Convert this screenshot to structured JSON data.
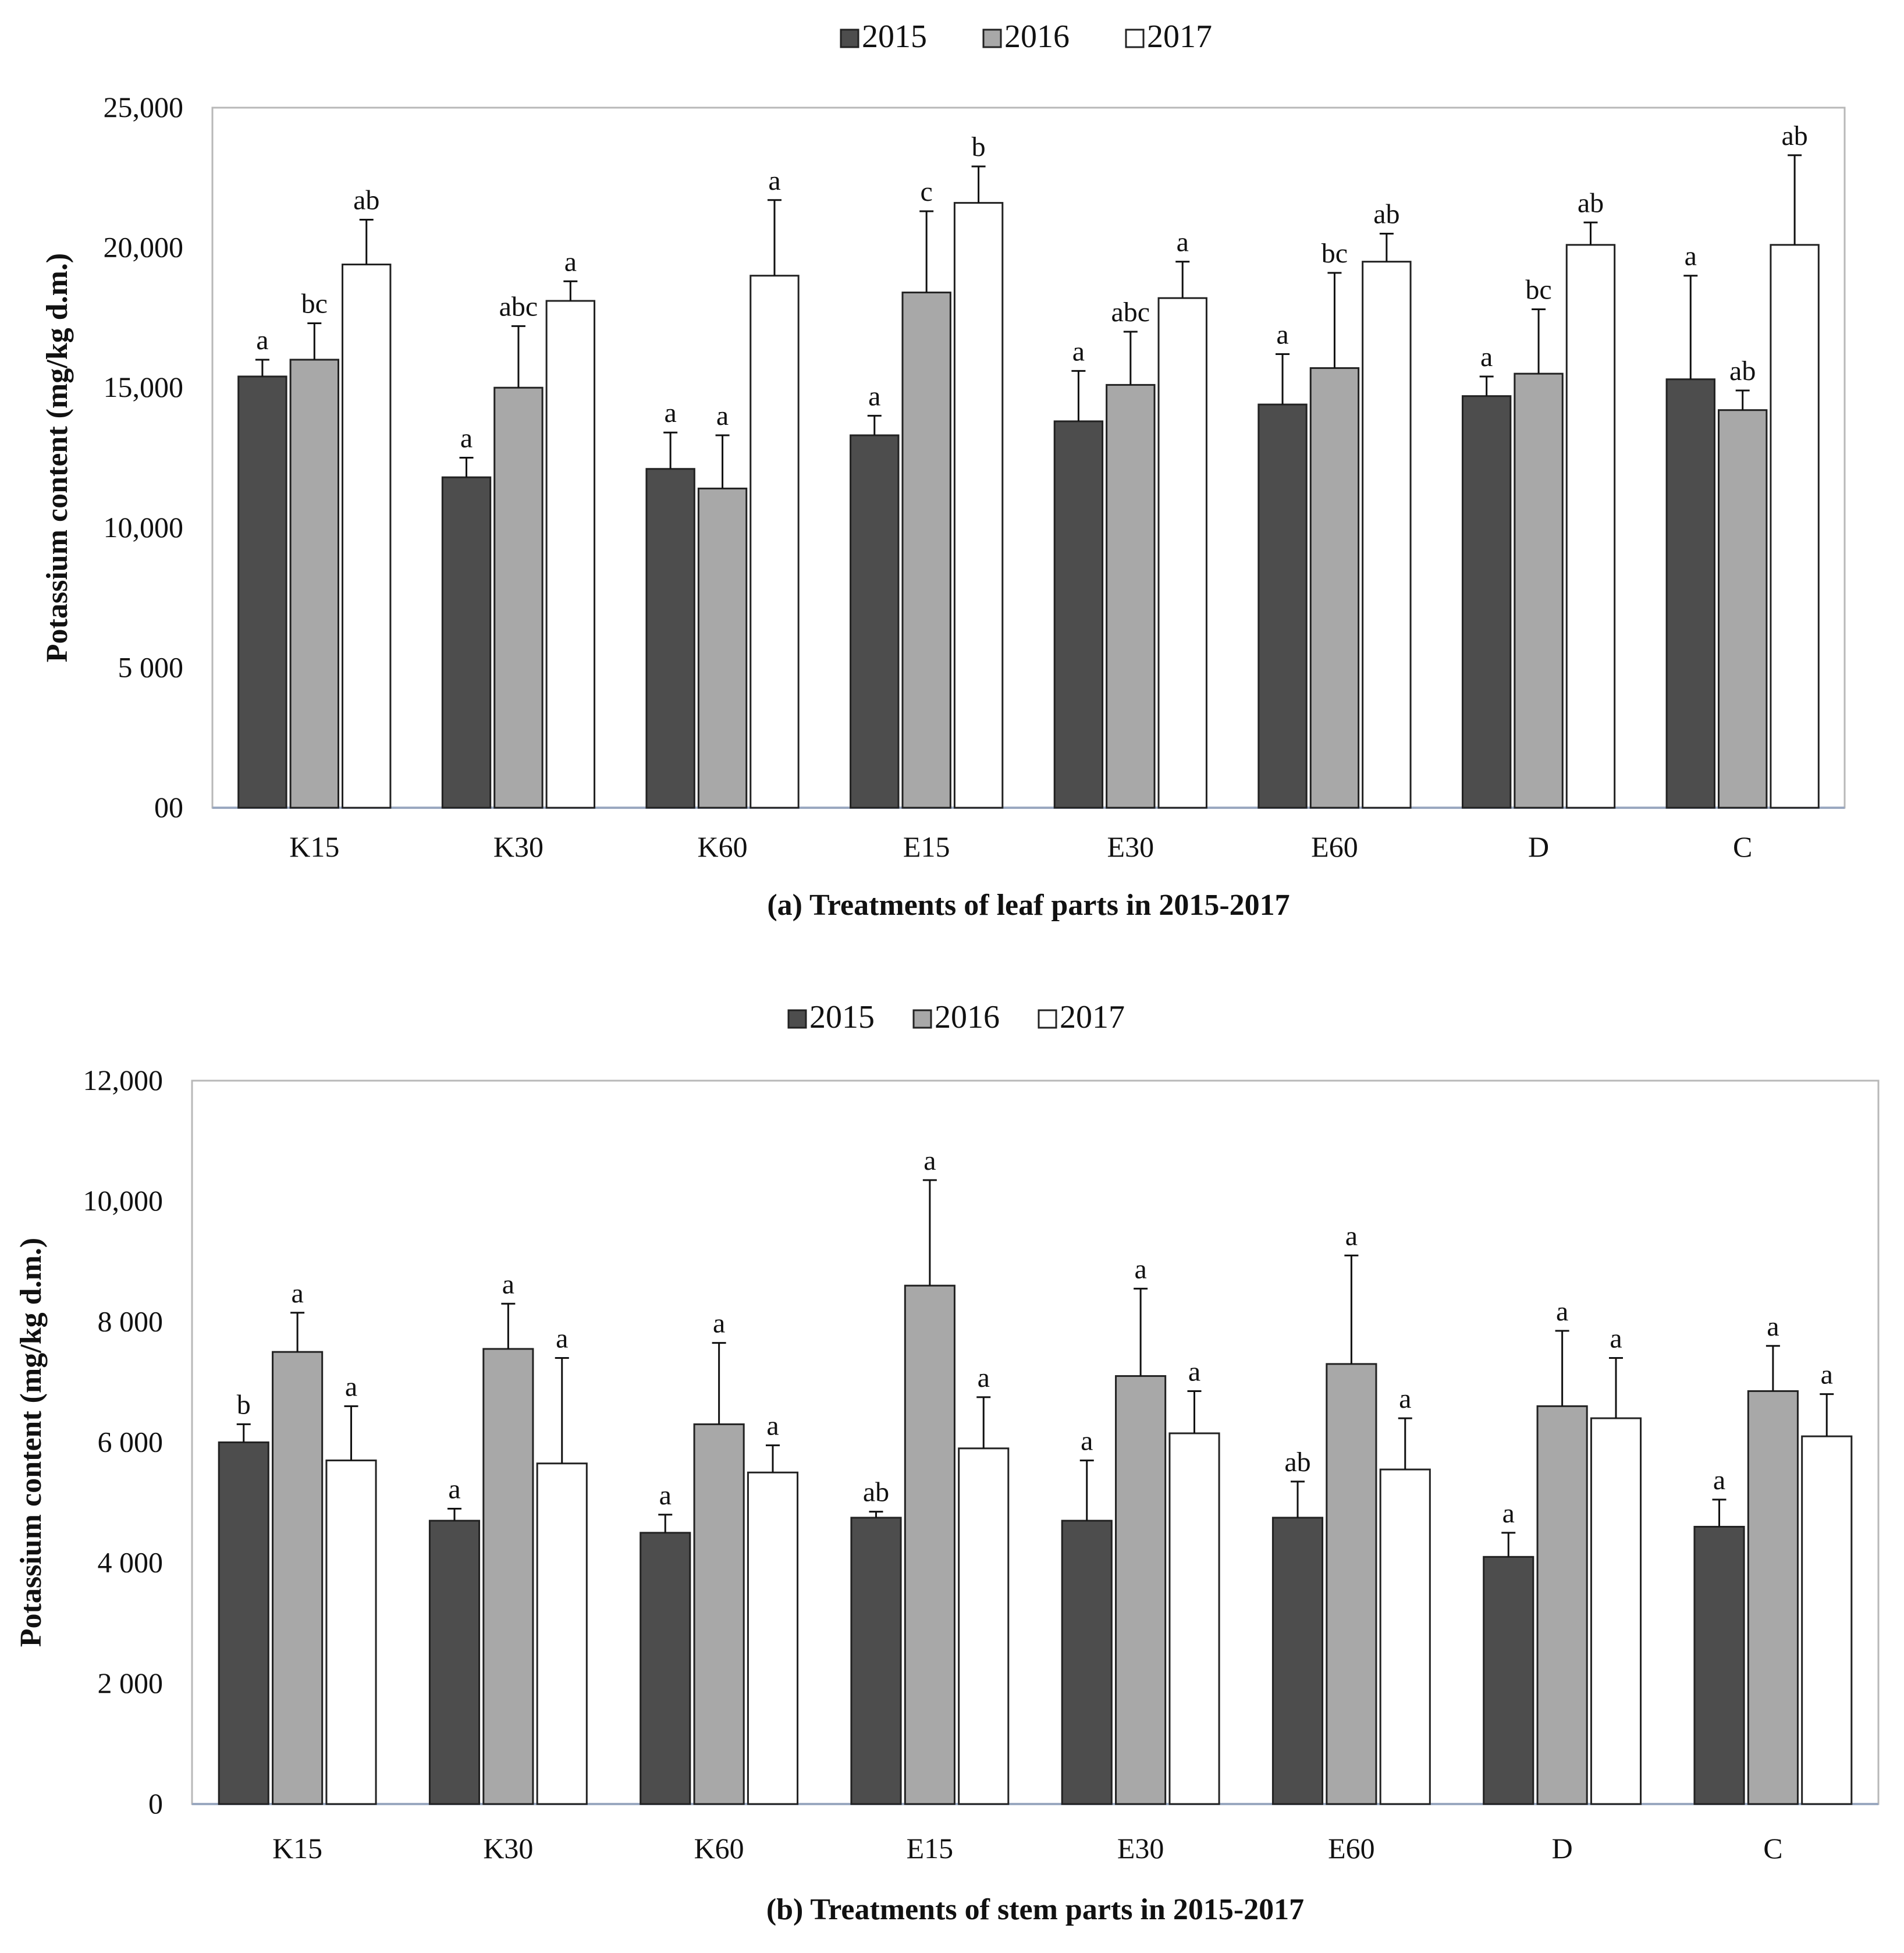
{
  "colors": {
    "2015": "#4d4d4d",
    "2016": "#a8a8a8",
    "2017": "#ffffff",
    "bar_stroke": "#222222",
    "frame": "#b8b8b8"
  },
  "chart_data": [
    {
      "type": "bar",
      "legend_position": "top",
      "legend": [
        "2015",
        "2016",
        "2017"
      ],
      "categories": [
        "K15",
        "K30",
        "K60",
        "E15",
        "E30",
        "E60",
        "D",
        "C"
      ],
      "xlabel": "(a) Treatments of leaf parts in 2015-2017",
      "ylabel": "Potassium content (mg/kg d.m.)",
      "ylim": [
        0,
        25000
      ],
      "ytick_labels": [
        "00",
        "5 000",
        "10,000",
        "15,000",
        "20,000",
        "25,000"
      ],
      "grid": false,
      "series": [
        {
          "name": "2015",
          "values": [
            15400,
            11800,
            12100,
            13300,
            13800,
            14400,
            14700,
            15300
          ],
          "errors": [
            600,
            700,
            1300,
            700,
            1800,
            1800,
            700,
            3700
          ],
          "letters": [
            "a",
            "a",
            "a",
            "a",
            "a",
            "a",
            "a",
            "a"
          ]
        },
        {
          "name": "2016",
          "values": [
            16000,
            15000,
            11400,
            18400,
            15100,
            15700,
            15500,
            14200
          ],
          "errors": [
            1300,
            2200,
            1900,
            2900,
            1900,
            3400,
            2300,
            700
          ],
          "letters": [
            "bc",
            "abc",
            "a",
            "c",
            "abc",
            "bc",
            "bc",
            "ab"
          ]
        },
        {
          "name": "2017",
          "values": [
            19400,
            18100,
            19000,
            21600,
            18200,
            19500,
            20100,
            20100
          ],
          "errors": [
            1600,
            700,
            2700,
            1300,
            1300,
            1000,
            800,
            3200
          ],
          "letters": [
            "ab",
            "a",
            "a",
            "b",
            "a",
            "ab",
            "ab",
            "ab"
          ]
        }
      ]
    },
    {
      "type": "bar",
      "legend_position": "top",
      "legend": [
        "2015",
        "2016",
        "2017"
      ],
      "categories": [
        "K15",
        "K30",
        "K60",
        "E15",
        "E30",
        "E60",
        "D",
        "C"
      ],
      "xlabel": "(b) Treatments of stem parts in 2015-2017",
      "ylabel": "Potassium content (mg/kg d.m.)",
      "ylim": [
        0,
        12000
      ],
      "ytick_labels": [
        "0",
        "2 000",
        "4 000",
        "6 000",
        "8 000",
        "10,000",
        "12,000"
      ],
      "grid": false,
      "series": [
        {
          "name": "2015",
          "values": [
            6000,
            4700,
            4500,
            4750,
            4700,
            4750,
            4100,
            4600
          ],
          "errors": [
            300,
            200,
            300,
            100,
            1000,
            600,
            400,
            450
          ],
          "letters": [
            "b",
            "a",
            "a",
            "ab",
            "a",
            "ab",
            "a",
            "a"
          ]
        },
        {
          "name": "2016",
          "values": [
            7500,
            7550,
            6300,
            8600,
            7100,
            7300,
            6600,
            6850
          ],
          "errors": [
            650,
            750,
            1350,
            1750,
            1450,
            1800,
            1250,
            750
          ],
          "letters": [
            "a",
            "a",
            "a",
            "a",
            "a",
            "a",
            "a",
            "a"
          ]
        },
        {
          "name": "2017",
          "values": [
            5700,
            5650,
            5500,
            5900,
            6150,
            5550,
            6400,
            6100
          ],
          "errors": [
            900,
            1750,
            450,
            850,
            700,
            850,
            1000,
            700
          ],
          "letters": [
            "a",
            "a",
            "a",
            "a",
            "a",
            "a",
            "a",
            "a"
          ]
        }
      ]
    }
  ]
}
